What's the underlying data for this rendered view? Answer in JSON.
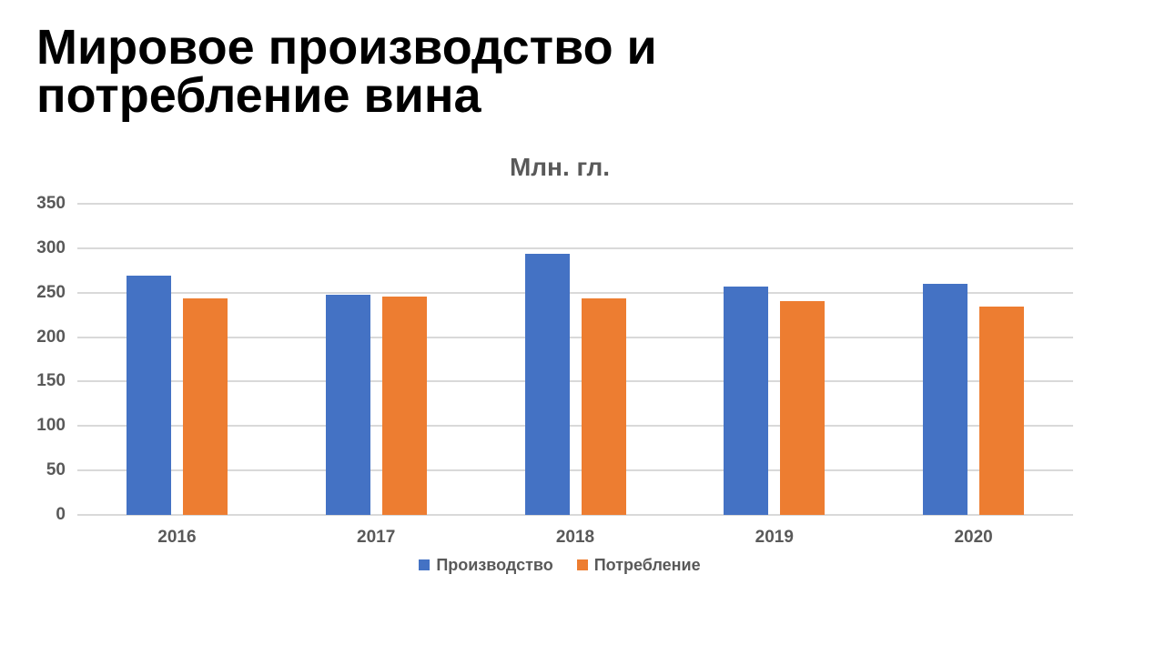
{
  "slide": {
    "title_lines": [
      "Мировое производство и",
      "потребление вина"
    ]
  },
  "chart_data": {
    "type": "bar",
    "title": "Млн. гл.",
    "categories": [
      "2016",
      "2017",
      "2018",
      "2019",
      "2020"
    ],
    "series": [
      {
        "name": "Производство",
        "color": "#4472C4",
        "values": [
          269,
          248,
          294,
          257,
          260
        ]
      },
      {
        "name": "Потребление",
        "color": "#ED7D31",
        "values": [
          244,
          246,
          244,
          241,
          234
        ]
      }
    ],
    "ylim": [
      0,
      350
    ],
    "yticks": [
      0,
      50,
      100,
      150,
      200,
      250,
      300,
      350
    ],
    "grid": true,
    "legend_position": "bottom",
    "axis_label_color": "#595959",
    "gridline_color": "#D9D9D9",
    "title_color": "#595959",
    "background": "#FFFFFF"
  }
}
